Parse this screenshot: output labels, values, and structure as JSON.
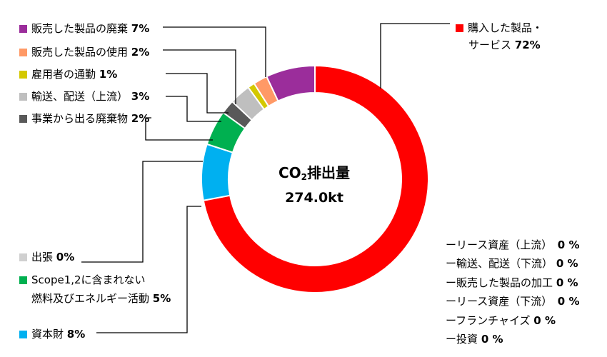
{
  "chart_data": {
    "type": "donut",
    "center_label": {
      "prefix": "CO",
      "subscript": "2",
      "suffix": "排出量",
      "value": "274.0kt"
    },
    "segments": [
      {
        "name": "購入した製品・サービス",
        "line1": "購入した製品・",
        "line2": "サービス",
        "value": 72,
        "color": "#ff0000"
      },
      {
        "name": "資本財",
        "value": 8,
        "color": "#00b0f0"
      },
      {
        "name": "Scope1,2に含まれない燃料及びエネルギー活動",
        "line1": "Scope1,2に含まれない",
        "line2": "燃料及びエネルギー活動",
        "value": 5,
        "color": "#00b050"
      },
      {
        "name": "出張",
        "value": 0,
        "color": "#d0d0d0"
      },
      {
        "name": "事業から出る廃棄物",
        "value": 2,
        "color": "#595959"
      },
      {
        "name": "輸送、配送（上流）",
        "value": 3,
        "color": "#bfbfbf"
      },
      {
        "name": "雇用者の通勤",
        "value": 1,
        "color": "#d4c800"
      },
      {
        "name": "販売した製品の使用",
        "value": 2,
        "color": "#ff9966"
      },
      {
        "name": "販売した製品の廃棄",
        "value": 7,
        "color": "#9b2d9b"
      }
    ],
    "zero_items": [
      {
        "name": "リース資産（上流）",
        "value": "0 %"
      },
      {
        "name": "輸送、配送（下流）",
        "value": "0 %"
      },
      {
        "name": "販売した製品の加工",
        "value": "0 %"
      },
      {
        "name": "リース資産（下流）",
        "value": "0 %"
      },
      {
        "name": "フランチャイズ",
        "value": "0 %"
      },
      {
        "name": "投資",
        "value": "0 %"
      }
    ],
    "dash": "ー"
  }
}
